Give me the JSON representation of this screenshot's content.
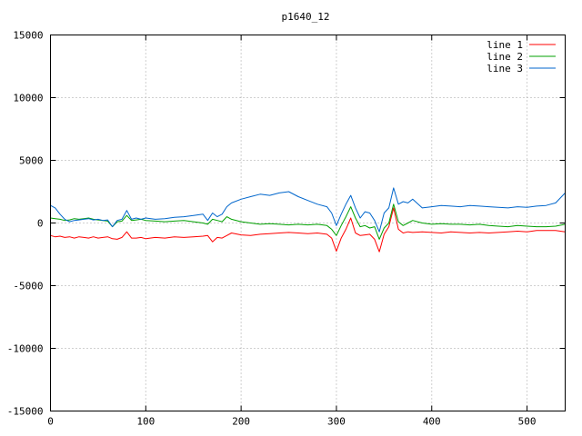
{
  "chart_data": {
    "type": "line",
    "title": "p1640_12",
    "xlabel": "",
    "ylabel": "",
    "xlim": [
      0,
      540
    ],
    "ylim": [
      -15000,
      15000
    ],
    "xticks": [
      0,
      100,
      200,
      300,
      400,
      500
    ],
    "yticks": [
      -15000,
      -10000,
      -5000,
      0,
      5000,
      10000,
      15000
    ],
    "grid": true,
    "legend_position": "top-right",
    "series": [
      {
        "name": "line 1",
        "color": "#ff0000",
        "x": [
          0,
          5,
          10,
          15,
          20,
          25,
          30,
          35,
          40,
          45,
          50,
          55,
          60,
          65,
          70,
          75,
          80,
          85,
          90,
          95,
          100,
          110,
          120,
          130,
          140,
          150,
          160,
          165,
          170,
          175,
          180,
          185,
          190,
          200,
          210,
          220,
          230,
          240,
          250,
          260,
          270,
          280,
          290,
          295,
          300,
          305,
          310,
          315,
          320,
          325,
          330,
          335,
          340,
          345,
          350,
          355,
          360,
          365,
          370,
          375,
          380,
          390,
          400,
          410,
          420,
          430,
          440,
          450,
          460,
          470,
          480,
          490,
          500,
          510,
          520,
          530,
          540
        ],
        "y": [
          -1000,
          -1100,
          -1050,
          -1150,
          -1100,
          -1200,
          -1100,
          -1150,
          -1200,
          -1100,
          -1200,
          -1150,
          -1100,
          -1250,
          -1300,
          -1150,
          -700,
          -1200,
          -1200,
          -1150,
          -1250,
          -1150,
          -1200,
          -1100,
          -1150,
          -1100,
          -1050,
          -1000,
          -1500,
          -1150,
          -1200,
          -1000,
          -800,
          -950,
          -1000,
          -900,
          -850,
          -800,
          -750,
          -800,
          -850,
          -800,
          -900,
          -1200,
          -2250,
          -1200,
          -500,
          400,
          -800,
          -1000,
          -950,
          -900,
          -1300,
          -2300,
          -900,
          -300,
          1200,
          -500,
          -800,
          -700,
          -750,
          -700,
          -750,
          -800,
          -700,
          -750,
          -800,
          -750,
          -800,
          -750,
          -700,
          -650,
          -700,
          -600,
          -600,
          -600,
          -700
        ]
      },
      {
        "name": "line 2",
        "color": "#00a000",
        "x": [
          0,
          5,
          10,
          15,
          20,
          25,
          30,
          35,
          40,
          45,
          50,
          55,
          60,
          65,
          70,
          75,
          80,
          85,
          90,
          95,
          100,
          110,
          120,
          130,
          140,
          150,
          160,
          165,
          170,
          175,
          180,
          185,
          190,
          200,
          210,
          220,
          230,
          240,
          250,
          260,
          270,
          280,
          290,
          295,
          300,
          305,
          310,
          315,
          320,
          325,
          330,
          335,
          340,
          345,
          350,
          355,
          360,
          365,
          370,
          375,
          380,
          390,
          400,
          410,
          420,
          430,
          440,
          450,
          460,
          470,
          480,
          490,
          500,
          510,
          520,
          530,
          540
        ],
        "y": [
          400,
          350,
          300,
          200,
          250,
          350,
          300,
          350,
          400,
          300,
          250,
          200,
          150,
          -300,
          100,
          150,
          600,
          200,
          250,
          300,
          200,
          150,
          100,
          150,
          200,
          100,
          0,
          -100,
          300,
          200,
          100,
          500,
          300,
          100,
          0,
          -100,
          -50,
          -100,
          -150,
          -100,
          -150,
          -100,
          -200,
          -500,
          -1000,
          -200,
          500,
          1300,
          400,
          -300,
          -200,
          -400,
          -300,
          -1300,
          -400,
          0,
          1500,
          100,
          -200,
          0,
          200,
          0,
          -100,
          -50,
          -100,
          -100,
          -150,
          -100,
          -200,
          -250,
          -300,
          -200,
          -250,
          -300,
          -300,
          -250,
          -100
        ]
      },
      {
        "name": "line 3",
        "color": "#0066cc",
        "x": [
          0,
          5,
          10,
          15,
          20,
          25,
          30,
          35,
          40,
          45,
          50,
          55,
          60,
          65,
          70,
          75,
          80,
          85,
          90,
          95,
          100,
          110,
          120,
          130,
          140,
          150,
          160,
          165,
          170,
          175,
          180,
          185,
          190,
          200,
          210,
          220,
          230,
          240,
          250,
          260,
          270,
          280,
          290,
          295,
          300,
          305,
          310,
          315,
          320,
          325,
          330,
          335,
          340,
          345,
          350,
          355,
          360,
          365,
          370,
          375,
          380,
          390,
          400,
          410,
          420,
          430,
          440,
          450,
          460,
          470,
          480,
          490,
          500,
          510,
          520,
          530,
          540
        ],
        "y": [
          1400,
          1200,
          700,
          300,
          100,
          200,
          250,
          300,
          350,
          250,
          300,
          200,
          250,
          -300,
          200,
          300,
          1000,
          300,
          400,
          300,
          400,
          300,
          350,
          450,
          500,
          600,
          700,
          200,
          800,
          500,
          700,
          1300,
          1600,
          1900,
          2100,
          2300,
          2200,
          2400,
          2500,
          2100,
          1800,
          1500,
          1300,
          800,
          -200,
          700,
          1500,
          2200,
          1200,
          400,
          900,
          800,
          200,
          -700,
          800,
          1200,
          2800,
          1500,
          1700,
          1600,
          1900,
          1200,
          1300,
          1400,
          1350,
          1300,
          1400,
          1350,
          1300,
          1250,
          1200,
          1300,
          1250,
          1350,
          1400,
          1600,
          2400
        ]
      }
    ]
  }
}
